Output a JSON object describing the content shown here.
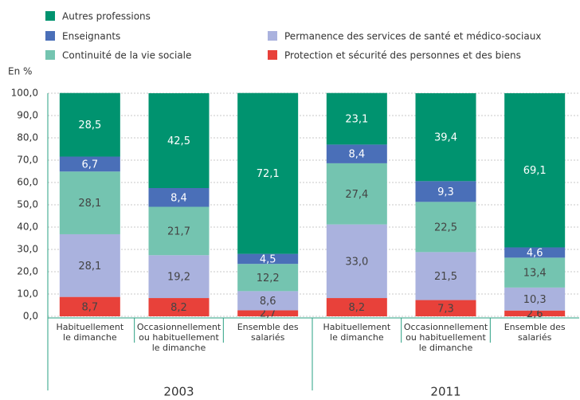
{
  "chart_data": {
    "type": "stacked_bar",
    "y_label": "En %",
    "categories": [
      [
        "Habituellement",
        "le dimanche"
      ],
      [
        "Occasionnellement",
        "ou habituellement",
        "le dimanche"
      ],
      [
        "Ensemble des",
        "salariés"
      ],
      [
        "Habituellement",
        "le dimanche"
      ],
      [
        "Occasionnellement",
        "ou habituellement",
        "le dimanche"
      ],
      [
        "Ensemble des",
        "salariés"
      ]
    ],
    "groups": [
      "2003",
      "2011"
    ],
    "series": [
      {
        "name": "Protection et sécurité des personnes et des biens",
        "color": "#e8413a",
        "label_color": "#444444",
        "values": [
          8.7,
          8.2,
          2.7,
          8.2,
          7.3,
          2.6
        ],
        "value_labels": [
          "8,7",
          "8,2",
          "2,7",
          "8,2",
          "7,3",
          "2,6"
        ]
      },
      {
        "name": "Permanence des services de santé et médico-sociaux",
        "color": "#aab2de",
        "label_color": "#444444",
        "values": [
          28.1,
          19.2,
          8.6,
          33.0,
          21.5,
          10.3
        ],
        "value_labels": [
          "28,1",
          "19,2",
          "8,6",
          "33,0",
          "21,5",
          "10,3"
        ]
      },
      {
        "name": "Continuité de la vie sociale",
        "color": "#74c4b0",
        "label_color": "#444444",
        "values": [
          28.1,
          21.7,
          12.2,
          27.4,
          22.5,
          13.4
        ],
        "value_labels": [
          "28,1",
          "21,7",
          "12,2",
          "27,4",
          "22,5",
          "13,4"
        ]
      },
      {
        "name": "Enseignants",
        "color": "#4a6fb8",
        "label_color": "#ffffff",
        "values": [
          6.7,
          8.4,
          4.5,
          8.4,
          9.3,
          4.6
        ],
        "value_labels": [
          "6,7",
          "8,4",
          "4,5",
          "8,4",
          "9,3",
          "4,6"
        ]
      },
      {
        "name": "Autres professions",
        "color": "#00936f",
        "label_color": "#ffffff",
        "values": [
          28.5,
          42.5,
          72.1,
          23.1,
          39.4,
          69.1
        ],
        "value_labels": [
          "28,5",
          "42,5",
          "72,1",
          "23,1",
          "39,4",
          "69,1"
        ]
      }
    ],
    "ylim": [
      0,
      100
    ],
    "yticks": [
      {
        "value": 0,
        "label": "0,0"
      },
      {
        "value": 10,
        "label": "10,0"
      },
      {
        "value": 20,
        "label": "20,0"
      },
      {
        "value": 30,
        "label": "30,0"
      },
      {
        "value": 40,
        "label": "40,0"
      },
      {
        "value": 50,
        "label": "50,0"
      },
      {
        "value": 60,
        "label": "60,0"
      },
      {
        "value": 70,
        "label": "70,0"
      },
      {
        "value": 80,
        "label": "80,0"
      },
      {
        "value": 90,
        "label": "90,0"
      },
      {
        "value": 100,
        "label": "100,0"
      }
    ],
    "grid": true
  }
}
